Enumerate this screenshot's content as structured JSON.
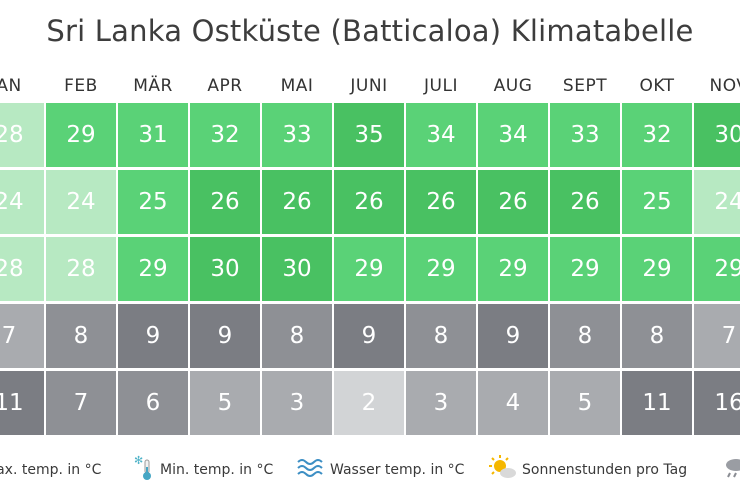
{
  "title": "Sri Lanka Ostküste (Batticaloa) Klimatabelle",
  "months": [
    "AN",
    "FEB",
    "MÄR",
    "APR",
    "MAI",
    "JUNI",
    "JULI",
    "AUG",
    "SEPT",
    "OKT",
    "NOV"
  ],
  "colors": {
    "green_dark": "#49c162",
    "green_mid": "#5ad277",
    "green_light": "#86dc99",
    "green_pale": "#b7e9c2",
    "gray_dark": "#7b7d83",
    "gray_mid": "#8e9095",
    "gray_light": "#a9abaf",
    "gray_pale": "#d2d4d6"
  },
  "legend": [
    {
      "icon": "thermometer-icon",
      "label": "Max. temp. in °C"
    },
    {
      "icon": "snowflake-thermometer-icon",
      "label": "Min. temp. in °C"
    },
    {
      "icon": "water-waves-icon",
      "label": "Wasser temp. in °C"
    },
    {
      "icon": "sun-cloud-icon",
      "label": "Sonnenstunden pro Tag"
    },
    {
      "icon": "rain-cloud-icon",
      "label": ""
    }
  ],
  "chart_data": {
    "type": "table",
    "title": "Sri Lanka Ostküste (Batticaloa) Klimatabelle",
    "categories": [
      "AN",
      "FEB",
      "MÄR",
      "APR",
      "MAI",
      "JUNI",
      "JULI",
      "AUG",
      "SEPT",
      "OKT",
      "NOV"
    ],
    "series": [
      {
        "name": "Max. temp. in °C",
        "values": [
          28,
          29,
          31,
          32,
          33,
          35,
          34,
          34,
          33,
          32,
          30
        ]
      },
      {
        "name": "Min. temp. in °C",
        "values": [
          24,
          24,
          25,
          26,
          26,
          26,
          26,
          26,
          26,
          25,
          24
        ]
      },
      {
        "name": "Wasser temp. in °C",
        "values": [
          28,
          28,
          29,
          30,
          30,
          29,
          29,
          29,
          29,
          29,
          29
        ]
      },
      {
        "name": "Sonnenstunden pro Tag",
        "values": [
          7,
          8,
          9,
          9,
          8,
          9,
          8,
          9,
          8,
          8,
          7
        ]
      },
      {
        "name": "",
        "values": [
          11,
          7,
          6,
          5,
          3,
          2,
          3,
          4,
          5,
          11,
          16
        ]
      }
    ]
  }
}
